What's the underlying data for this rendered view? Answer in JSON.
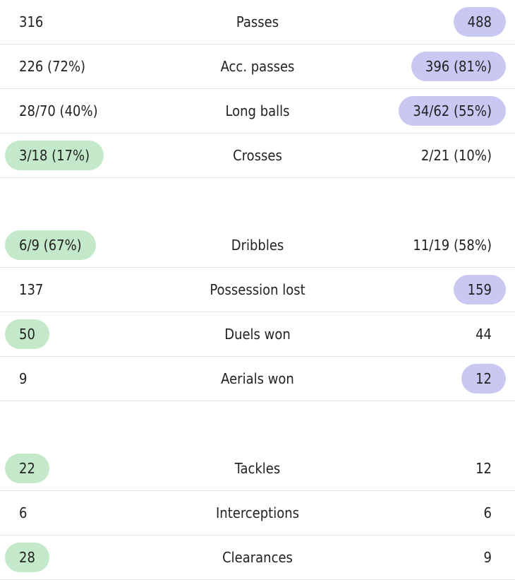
{
  "colors": {
    "home_highlight": "#c4e9ca",
    "away_highlight": "#c8c8f3",
    "divider": "#e4e4e4"
  },
  "groups": [
    {
      "rows": [
        {
          "label": "Passes",
          "home": "316",
          "away": "488",
          "highlight": "away"
        },
        {
          "label": "Acc. passes",
          "home": "226 (72%)",
          "away": "396 (81%)",
          "highlight": "away"
        },
        {
          "label": "Long balls",
          "home": "28/70 (40%)",
          "away": "34/62 (55%)",
          "highlight": "away"
        },
        {
          "label": "Crosses",
          "home": "3/18 (17%)",
          "away": "2/21 (10%)",
          "highlight": "home"
        }
      ]
    },
    {
      "rows": [
        {
          "label": "Dribbles",
          "home": "6/9 (67%)",
          "away": "11/19 (58%)",
          "highlight": "home"
        },
        {
          "label": "Possession lost",
          "home": "137",
          "away": "159",
          "highlight": "away"
        },
        {
          "label": "Duels won",
          "home": "50",
          "away": "44",
          "highlight": "home"
        },
        {
          "label": "Aerials won",
          "home": "9",
          "away": "12",
          "highlight": "away"
        }
      ]
    },
    {
      "rows": [
        {
          "label": "Tackles",
          "home": "22",
          "away": "12",
          "highlight": "home"
        },
        {
          "label": "Interceptions",
          "home": "6",
          "away": "6",
          "highlight": "none"
        },
        {
          "label": "Clearances",
          "home": "28",
          "away": "9",
          "highlight": "home"
        }
      ]
    }
  ]
}
